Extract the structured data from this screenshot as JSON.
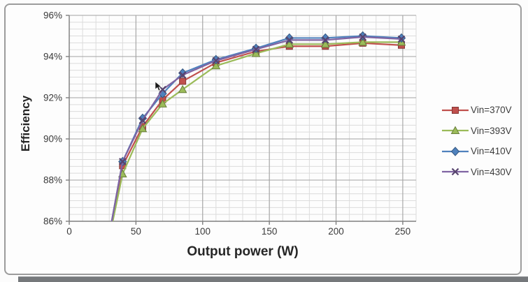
{
  "figure": {
    "border_color": "#9c9c9c",
    "background": "#fdfdfd",
    "bottom_bar_color": "#75787b"
  },
  "chart_data": {
    "type": "line",
    "title": "",
    "xlabel": "Output power (W)",
    "ylabel": "Efficiency",
    "xlim": [
      0,
      260
    ],
    "ylim": [
      86,
      96
    ],
    "x_major_ticks": [
      0,
      50,
      100,
      150,
      200,
      250
    ],
    "x_tick_labels": [
      "0",
      "50",
      "100",
      "150",
      "200",
      "250"
    ],
    "x_minor_step": 10,
    "y_major_ticks": [
      86,
      88,
      90,
      92,
      94,
      96
    ],
    "y_tick_labels": [
      "86%",
      "88%",
      "90%",
      "92%",
      "94%",
      "96%"
    ],
    "y_minor_divisions_per_major": 6,
    "grid": true,
    "legend_position": "right-outside",
    "x": [
      31,
      40,
      55,
      70,
      85,
      110,
      140,
      165,
      192,
      220,
      249
    ],
    "series": [
      {
        "name": "Vin=370V",
        "color": "#C0504D",
        "marker": "square",
        "values": [
          85.6,
          88.7,
          90.6,
          91.9,
          92.8,
          93.7,
          94.25,
          94.5,
          94.5,
          94.65,
          94.55
        ]
      },
      {
        "name": "Vin=393V",
        "color": "#9BBB59",
        "marker": "triangle",
        "values": [
          85.5,
          88.3,
          90.5,
          91.7,
          92.4,
          93.55,
          94.15,
          94.6,
          94.6,
          94.7,
          94.7
        ]
      },
      {
        "name": "Vin=410V",
        "color": "#4F81BD",
        "marker": "diamond",
        "values": [
          85.7,
          88.9,
          91.0,
          92.2,
          93.2,
          93.85,
          94.4,
          94.9,
          94.9,
          95.0,
          94.9
        ]
      },
      {
        "name": "Vin=430V",
        "color": "#8064A2",
        "marker": "x",
        "values": [
          85.7,
          88.9,
          90.9,
          92.4,
          93.1,
          93.8,
          94.35,
          94.8,
          94.8,
          94.95,
          94.85
        ]
      }
    ],
    "colors": {
      "major_grid": "#a3a3a3",
      "minor_grid": "#dcdcdc",
      "axis_line": "#7f7f7f",
      "tick_text": "#3a3a3a"
    }
  }
}
